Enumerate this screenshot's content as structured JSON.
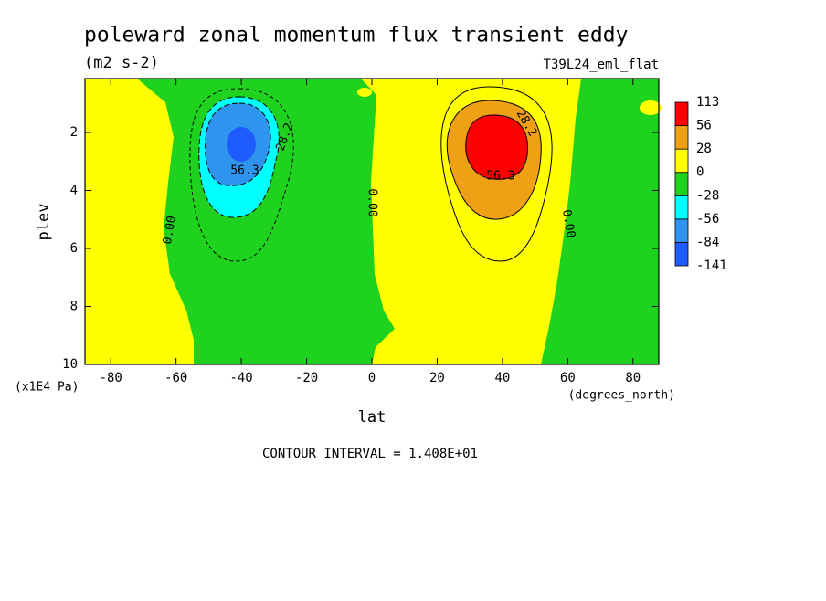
{
  "chart_data": {
    "type": "contour",
    "title": "poleward zonal momentum flux transient eddy",
    "units": "(m2 s-2)",
    "dataset": "T39L24_eml_flat",
    "x_label": "lat",
    "x_units": "(degrees_north)",
    "y_label": "plev",
    "y_units": "(x1E4 Pa)",
    "xlim": [
      -87.9,
      87.9
    ],
    "xticks": [
      -80,
      -60,
      -40,
      -20,
      0,
      20,
      40,
      60,
      80
    ],
    "ylim": [
      0.14,
      10
    ],
    "y_inverted": true,
    "yticks": [
      2,
      4,
      6,
      8,
      10
    ],
    "levels": [
      -141,
      -84,
      -56,
      -28,
      0,
      28,
      56,
      113
    ],
    "colors": [
      "#1f5cff",
      "#2f94ee",
      "#00ffff",
      "#1ed21e",
      "#ffff00",
      "#f0a014",
      "#ff0000"
    ],
    "contour_labels": [
      "28.2",
      "56.3",
      "0.00",
      "0.00",
      "28.2",
      "56.3",
      "0.00"
    ],
    "footer": "CONTOUR INTERVAL = 1.408E+01"
  }
}
